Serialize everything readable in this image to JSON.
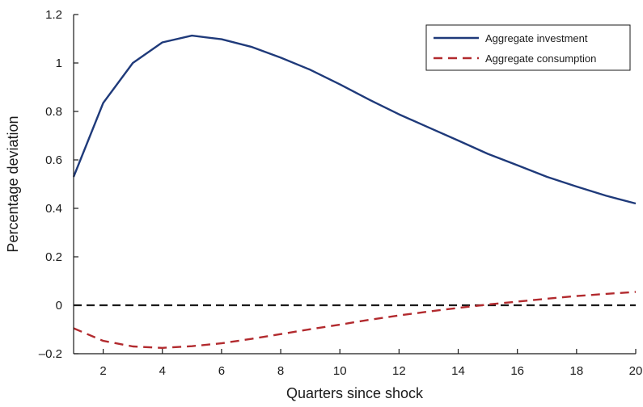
{
  "chart_data": {
    "type": "line",
    "title": "",
    "xlabel": "Quarters since shock",
    "ylabel": "Percentage deviation",
    "xlim": [
      1,
      20
    ],
    "ylim": [
      -0.2,
      1.2
    ],
    "x_ticks": [
      2,
      4,
      6,
      8,
      10,
      12,
      14,
      16,
      18,
      20
    ],
    "x_tick_labels": [
      "2",
      "4",
      "6",
      "8",
      "10",
      "12",
      "14",
      "16",
      "18",
      "20"
    ],
    "y_ticks": [
      -0.2,
      0,
      0.2,
      0.4,
      0.6,
      0.8,
      1,
      1.2
    ],
    "y_tick_labels": [
      "–0.2",
      "0",
      "0.2",
      "0.4",
      "0.6",
      "0.8",
      "1",
      "1.2"
    ],
    "grid": false,
    "legend_position": "top-right",
    "reference_line": {
      "y": 0,
      "color": "#1a1a1a",
      "style": "dashed"
    },
    "x": [
      1,
      2,
      3,
      4,
      5,
      6,
      7,
      8,
      9,
      10,
      11,
      12,
      13,
      14,
      15,
      16,
      17,
      18,
      19,
      20
    ],
    "series": [
      {
        "name": "Aggregate investment",
        "color": "#1f3a7a",
        "style": "solid",
        "values": [
          0.53,
          0.835,
          1.0,
          1.085,
          1.113,
          1.098,
          1.067,
          1.022,
          0.972,
          0.912,
          0.848,
          0.788,
          0.734,
          0.68,
          0.625,
          0.578,
          0.53,
          0.49,
          0.452,
          0.42
        ]
      },
      {
        "name": "Aggregate consumption",
        "color": "#b22a2e",
        "style": "dashed",
        "values": [
          -0.095,
          -0.147,
          -0.17,
          -0.176,
          -0.169,
          -0.157,
          -0.139,
          -0.119,
          -0.099,
          -0.08,
          -0.06,
          -0.042,
          -0.026,
          -0.011,
          0.003,
          0.015,
          0.027,
          0.038,
          0.047,
          0.055
        ]
      }
    ]
  }
}
